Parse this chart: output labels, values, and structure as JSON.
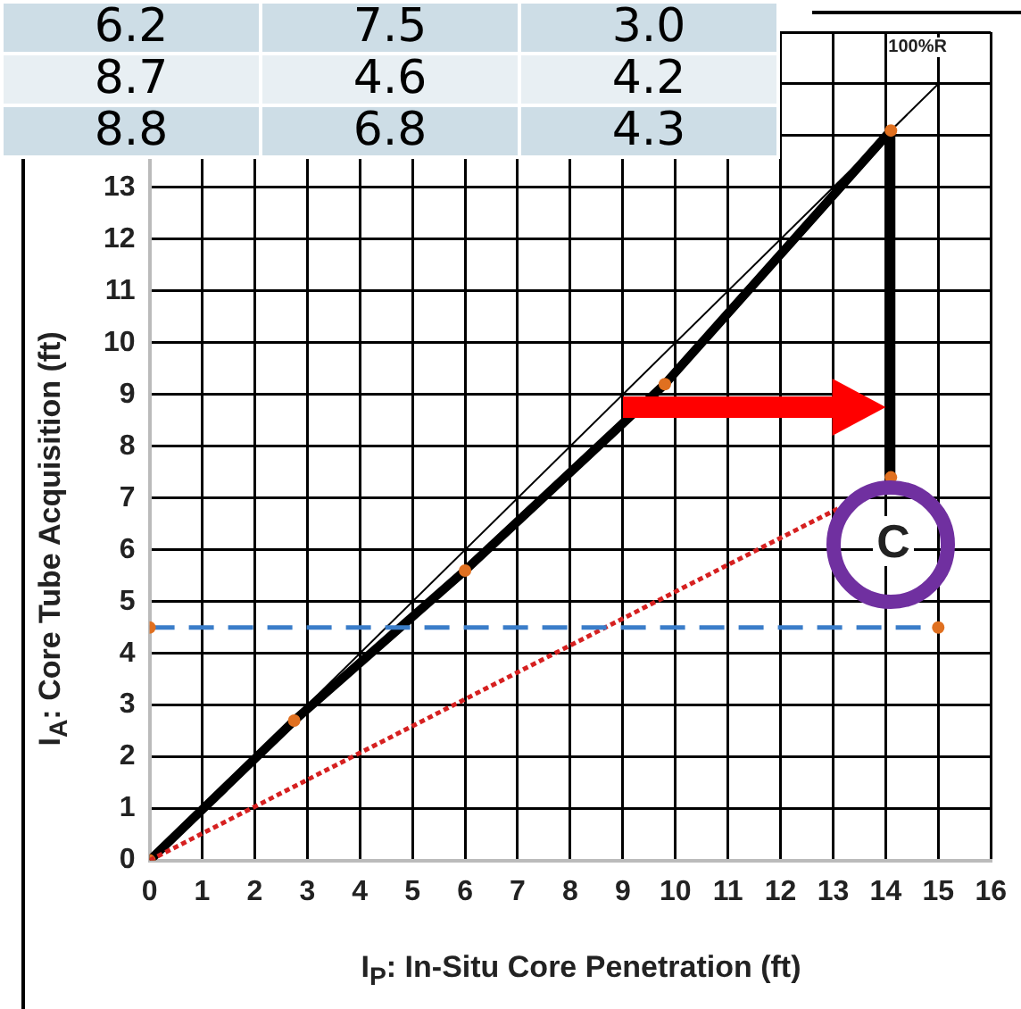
{
  "chart_data": {
    "type": "line",
    "xlabel": "I$_{P}$:  In-Situ Core Penetration (ft)",
    "ylabel": "I$_{A}$:  Core Tube Acquisition (ft)",
    "xlim": [
      0,
      16
    ],
    "xticks": [
      0,
      1,
      2,
      3,
      4,
      5,
      6,
      7,
      8,
      9,
      10,
      11,
      12,
      13,
      14,
      15,
      16
    ],
    "ylim": [
      0,
      16
    ],
    "yticks": [
      0,
      1,
      2,
      3,
      4,
      5,
      6,
      7,
      8,
      9,
      10,
      11,
      12,
      13,
      {
        "value": 14,
        "label": null
      },
      {
        "value": 15,
        "label": null
      },
      {
        "value": 16,
        "label": null
      }
    ],
    "grid": true,
    "legend": false,
    "series": [
      {
        "type": "line",
        "color": "#000000",
        "marker": "none",
        "line_style": "solid",
        "x": [
          0,
          15
        ],
        "values": [
          0,
          15
        ]
      },
      {
        "type": "line",
        "color": "#000000",
        "marker": "circle",
        "line_style": "solid",
        "colors": [
          "#e07020",
          "#e07020",
          "#e07020",
          "#e07020",
          "#e07020",
          "#e07020"
        ],
        "x": [
          0,
          2.75,
          6,
          9.8,
          14.1,
          14.1
        ],
        "values": [
          0,
          2.7,
          5.6,
          9.2,
          14.1,
          7.4
        ]
      },
      {
        "type": "line",
        "color": "#d62020",
        "marker": "none",
        "line_style": "dotted",
        "x": [
          0,
          13.1
        ],
        "values": [
          0,
          6.8
        ]
      },
      {
        "type": "line",
        "color": "#3a7dc9",
        "marker": "circle",
        "line_style": "dashed",
        "colors": [
          "#e07020",
          "#e07020"
        ],
        "x": [
          0,
          15
        ],
        "values": [
          4.5,
          4.5
        ]
      }
    ],
    "annotations": [
      "6.2",
      "7.5",
      "3.0",
      "8.7",
      "4.6",
      "4.2",
      "8.8",
      "6.8",
      "4.3",
      "100%R",
      "C"
    ]
  }
}
